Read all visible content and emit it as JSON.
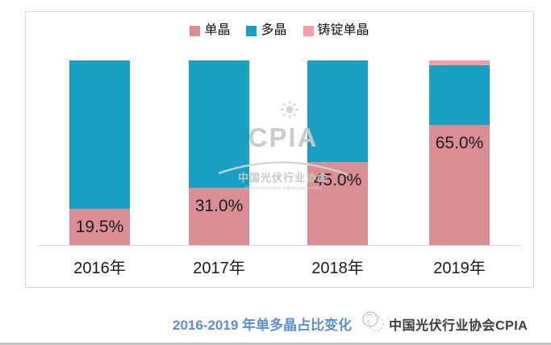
{
  "chart_data": {
    "type": "bar",
    "stacked": true,
    "orientation": "vertical",
    "categories": [
      "2016年",
      "2017年",
      "2018年",
      "2019年"
    ],
    "series": [
      {
        "name": "单晶",
        "color": "#d98f93",
        "values": [
          19.5,
          31.0,
          45.0,
          65.0
        ],
        "labels": [
          "19.5%",
          "31.0%",
          "45.0%",
          "65.0%"
        ]
      },
      {
        "name": "多晶",
        "color": "#189fc4",
        "values": [
          80.5,
          69.0,
          55.0,
          32.5
        ],
        "labels": [
          "",
          "",
          "",
          ""
        ]
      },
      {
        "name": "铸锭单晶",
        "color": "#fb9ca5",
        "values": [
          0,
          0,
          0,
          2.5
        ],
        "labels": [
          "",
          "",
          "",
          ""
        ]
      }
    ],
    "ylim": [
      0,
      100
    ],
    "unit": "percent",
    "grid": false,
    "legend_position": "top",
    "title": "2016-2019 年单多晶占比变化"
  },
  "watermark": {
    "acronym": "CPIA",
    "org_cn": "中国光伏行业协会",
    "org_en": "China Photovoltaic Industry Association"
  },
  "caption": {
    "text": "2016-2019 年单多晶占比变化",
    "color": "#5b8fd4"
  },
  "footer": {
    "logo_text": "中国光伏行业协会CPIA"
  },
  "colors": {
    "mono": "#d98f93",
    "poly": "#189fc4",
    "cast_mono": "#fb9ca5",
    "caption_blue": "#5b8fd4",
    "panel_border": "#d4d4d4",
    "axis_line": "#d9d9d9",
    "watermark_gray": "#c9c9c9",
    "label_text": "#1c1c1c"
  }
}
